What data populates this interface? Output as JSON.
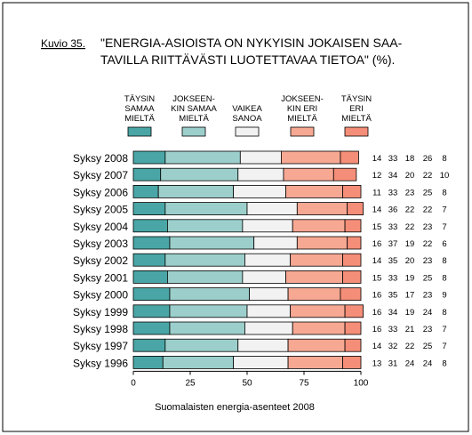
{
  "figure": {
    "label": "Kuvio 35.",
    "title_line1": "\"ENERGIA-ASIOISTA ON NYKYISIN JOKAISEN SAA-",
    "title_line2": "TAVILLA RIITTÄVÄSTI LUOTETTAVAA TIETOA\" (%).",
    "footer": "Suomalaisten energia-asenteet 2008"
  },
  "chart_data": {
    "type": "bar",
    "orientation": "horizontal",
    "stacked": true,
    "categories": [
      "Syksy 2008",
      "Syksy 2007",
      "Syksy 2006",
      "Syksy 2005",
      "Syksy 2004",
      "Syksy 2003",
      "Syksy 2002",
      "Syksy 2001",
      "Syksy 2000",
      "Syksy 1999",
      "Syksy 1998",
      "Syksy 1997",
      "Syksy 1996"
    ],
    "series": [
      {
        "name": "TÄYSIN SAMAA MIELTÄ",
        "legend_lines": [
          "TÄYSIN",
          "SAMAA",
          "MIELTÄ"
        ],
        "color": "#4aa6a6",
        "values": [
          14,
          12,
          11,
          14,
          15,
          16,
          14,
          15,
          16,
          16,
          16,
          14,
          13
        ]
      },
      {
        "name": "JOKSEENKIN SAMAA MIELTÄ",
        "legend_lines": [
          "JOKSEEN-",
          "KIN SAMAA",
          "MIELTÄ"
        ],
        "color": "#9ccfcb",
        "values": [
          33,
          34,
          33,
          36,
          33,
          37,
          35,
          33,
          35,
          34,
          33,
          32,
          31
        ]
      },
      {
        "name": "VAIKEA SANOA",
        "legend_lines": [
          "VAIKEA",
          "SANOA"
        ],
        "color": "#f2f2f2",
        "values": [
          18,
          20,
          23,
          22,
          22,
          19,
          20,
          19,
          17,
          19,
          21,
          22,
          24
        ]
      },
      {
        "name": "JOKSEENKIN ERI MIELTÄ",
        "legend_lines": [
          "JOKSEEN-",
          "KIN ERI",
          "MIELTÄ"
        ],
        "color": "#f7a893",
        "values": [
          26,
          22,
          25,
          22,
          23,
          22,
          23,
          25,
          23,
          24,
          23,
          25,
          24
        ]
      },
      {
        "name": "TÄYSIN ERI MIELTÄ",
        "legend_lines": [
          "TÄYSIN",
          "ERI",
          "MIELTÄ"
        ],
        "color": "#f58e78",
        "values": [
          8,
          10,
          8,
          7,
          7,
          6,
          8,
          8,
          9,
          8,
          7,
          7,
          8
        ]
      }
    ],
    "xlim": [
      0,
      100
    ],
    "xticks": [
      0,
      25,
      50,
      75,
      100
    ],
    "grid": false,
    "legend_position": "top",
    "value_labels": "right of each bar"
  }
}
